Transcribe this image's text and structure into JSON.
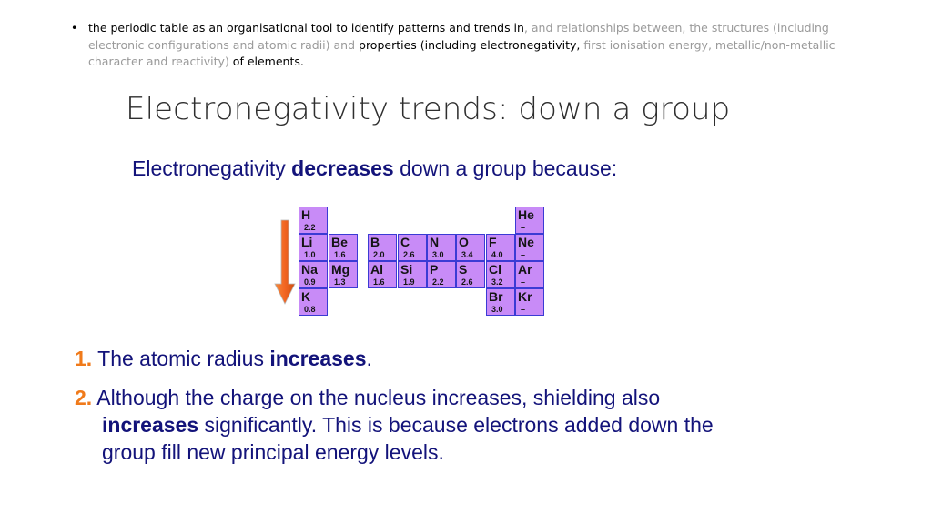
{
  "objective": {
    "bullet": "•",
    "p1": "the periodic table as an organisational tool to identify patterns and trends in",
    "p2": ", and relationships between, the structures (including electronic configurations and atomic radii) and",
    "p3": " properties (including electronegativity,",
    "p4": " first ionisation energy, metallic/non-metallic character and reactivity)",
    "p5": " of elements."
  },
  "title": "Electronegativity trends: down a group",
  "subtitle": {
    "pre": "Electronegativity ",
    "bold": "decreases",
    "post": " down a group because:"
  },
  "arrow": {
    "color": "#f26522",
    "direction": "down"
  },
  "periodic_table": {
    "cell_color": "#c88bf7",
    "border_color": "#3b3bd4",
    "elements": [
      {
        "symbol": "H",
        "en": "2.2",
        "group": 1,
        "period": 1
      },
      {
        "symbol": "Li",
        "en": "1.0",
        "group": 1,
        "period": 2
      },
      {
        "symbol": "Be",
        "en": "1.6",
        "group": 2,
        "period": 2
      },
      {
        "symbol": "Na",
        "en": "0.9",
        "group": 1,
        "period": 3
      },
      {
        "symbol": "Mg",
        "en": "1.3",
        "group": 2,
        "period": 3
      },
      {
        "symbol": "K",
        "en": "0.8",
        "group": 1,
        "period": 4
      },
      {
        "symbol": "He",
        "en": "–",
        "group": 18,
        "period": 1
      },
      {
        "symbol": "B",
        "en": "2.0",
        "group": 13,
        "period": 2
      },
      {
        "symbol": "C",
        "en": "2.6",
        "group": 14,
        "period": 2
      },
      {
        "symbol": "N",
        "en": "3.0",
        "group": 15,
        "period": 2
      },
      {
        "symbol": "O",
        "en": "3.4",
        "group": 16,
        "period": 2
      },
      {
        "symbol": "F",
        "en": "4.0",
        "group": 17,
        "period": 2
      },
      {
        "symbol": "Ne",
        "en": "–",
        "group": 18,
        "period": 2
      },
      {
        "symbol": "Al",
        "en": "1.6",
        "group": 13,
        "period": 3
      },
      {
        "symbol": "Si",
        "en": "1.9",
        "group": 14,
        "period": 3
      },
      {
        "symbol": "P",
        "en": "2.2",
        "group": 15,
        "period": 3
      },
      {
        "symbol": "S",
        "en": "2.6",
        "group": 16,
        "period": 3
      },
      {
        "symbol": "Cl",
        "en": "3.2",
        "group": 17,
        "period": 3
      },
      {
        "symbol": "Ar",
        "en": "–",
        "group": 18,
        "period": 3
      },
      {
        "symbol": "Br",
        "en": "3.0",
        "group": 17,
        "period": 4
      },
      {
        "symbol": "Kr",
        "en": "–",
        "group": 18,
        "period": 4
      }
    ]
  },
  "points": [
    {
      "number": "1.",
      "pre": " The atomic radius ",
      "bold": "increases",
      "post": "."
    },
    {
      "number": "2.",
      "line1": " Although the charge on the nucleus increases, shielding also",
      "bold": "increases",
      "post": " significantly. This is because electrons added down the group fill new principal energy levels."
    }
  ]
}
